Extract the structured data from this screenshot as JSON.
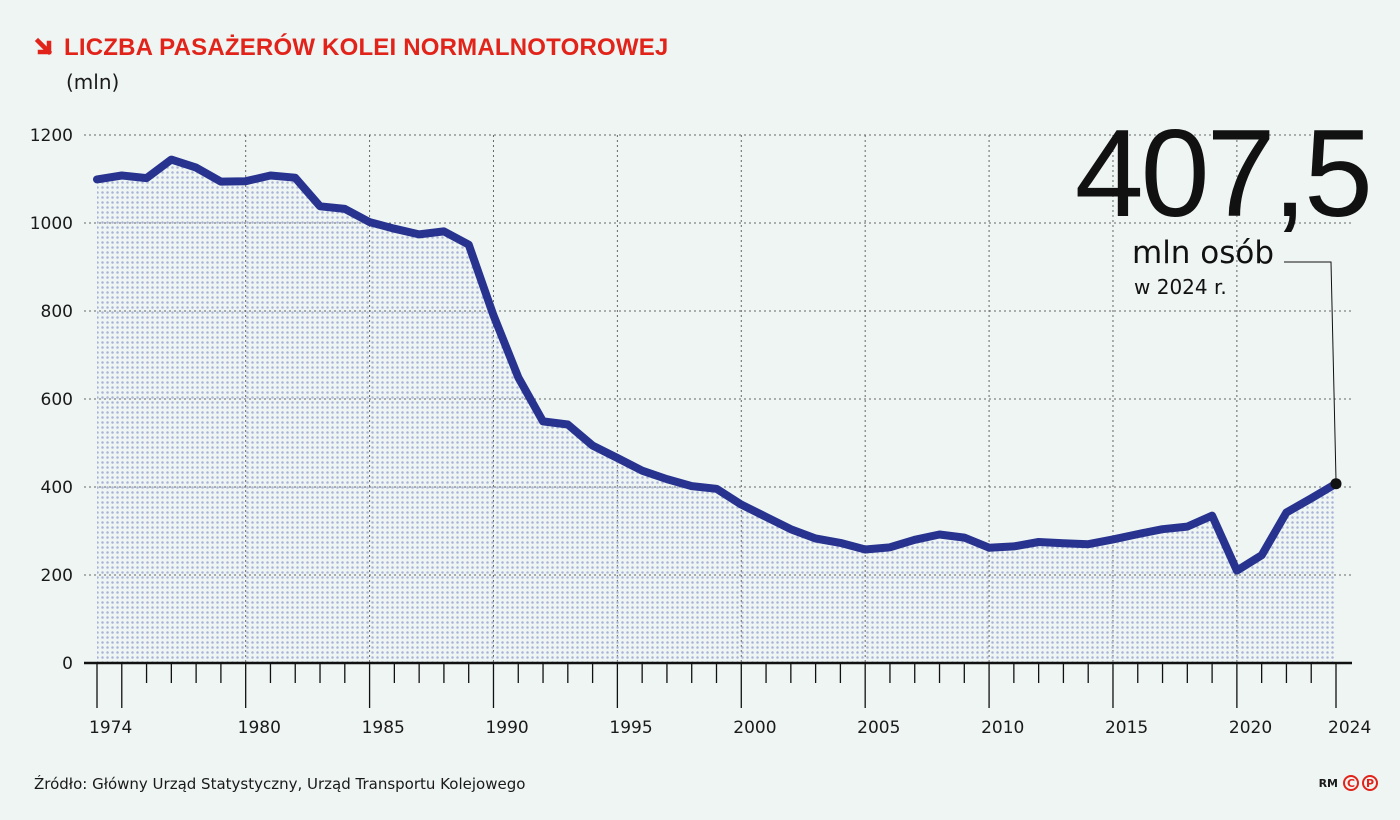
{
  "header": {
    "title": "LICZBA PASAŻERÓW KOLEI NORMALNOTOROWEJ",
    "unit": "(mln)"
  },
  "callout": {
    "value": "407,5",
    "unit": "mln osób",
    "year": "w 2024 r."
  },
  "footer": {
    "source": "Źródło: Główny Urząd Statystyczny, Urząd Transportu Kolejowego",
    "logo_text": "RM",
    "logo_c": "C",
    "logo_p": "P"
  },
  "colors": {
    "accent": "#e2231a",
    "line": "#27338f",
    "area_dots": "#a9b3d8",
    "background": "#eef5f3"
  },
  "chart_data": {
    "type": "area",
    "title": "LICZBA PASAŻERÓW KOLEI NORMALNOTOROWEJ",
    "ylabel": "(mln)",
    "xlabel": "",
    "ylim": [
      0,
      1200
    ],
    "xlim": [
      1974,
      2024
    ],
    "yticks": [
      0,
      200,
      400,
      600,
      800,
      1000,
      1200
    ],
    "xtick_labels": [
      1974,
      1980,
      1985,
      1990,
      1995,
      2000,
      2005,
      2010,
      2015,
      2020,
      2024
    ],
    "grid": true,
    "series": [
      {
        "x": [
          1974,
          1975,
          1976,
          1977,
          1978,
          1979,
          1980,
          1981,
          1982,
          1983,
          1984,
          1985,
          1986,
          1987,
          1988,
          1989,
          1990,
          1991,
          1992,
          1993,
          1994,
          1995,
          1996,
          1997,
          1998,
          1999,
          2000,
          2001,
          2002,
          2003,
          2004,
          2005,
          2006,
          2007,
          2008,
          2009,
          2010,
          2011,
          2012,
          2013,
          2014,
          2015,
          2016,
          2017,
          2018,
          2019,
          2020,
          2021,
          2022,
          2023,
          2024
        ],
        "values": [
          1099,
          1108,
          1102,
          1144,
          1126,
          1094,
          1095,
          1108,
          1103,
          1038,
          1032,
          1002,
          987,
          974,
          981,
          951,
          790,
          649,
          549,
          542,
          494,
          466,
          437,
          418,
          402,
          396,
          360,
          332,
          304,
          283,
          273,
          258,
          263,
          280,
          292,
          285,
          262,
          265,
          275,
          272,
          270,
          281,
          293,
          304,
          310,
          335,
          210,
          245,
          342,
          374,
          407.5
        ]
      }
    ],
    "annotation": {
      "x": 2024,
      "y": 407.5,
      "text": "407,5",
      "subtext": "mln osób",
      "note": "w 2024 r."
    }
  }
}
